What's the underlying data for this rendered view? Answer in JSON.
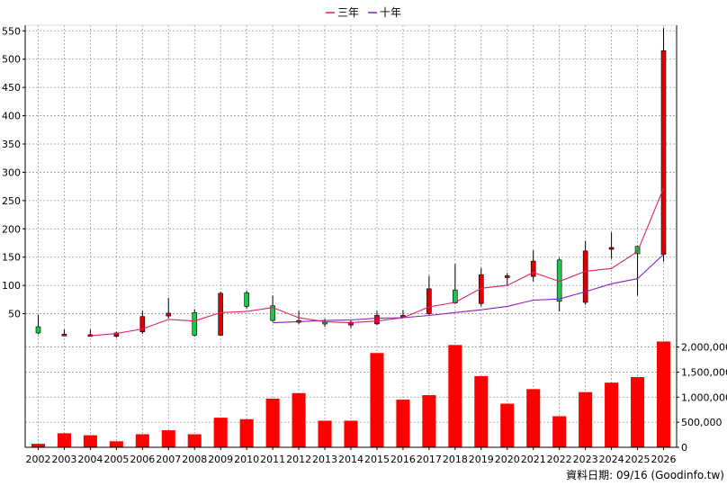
{
  "chart_data": {
    "type": "candlestick+line+bar",
    "legend": {
      "position": "top-center",
      "items": [
        {
          "name": "三年",
          "color": "#e0206b"
        },
        {
          "name": "十年",
          "color": "#8b1fc0"
        }
      ]
    },
    "colors": {
      "up": "#e00000",
      "down": "#19c84a",
      "volume": "#ff0000",
      "grid": "#9a9a9a",
      "axis": "#000000"
    },
    "grid": true,
    "years": [
      "2002",
      "2003",
      "2004",
      "2005",
      "2006",
      "2007",
      "2008",
      "2009",
      "2010",
      "2011",
      "2012",
      "2013",
      "2014",
      "2015",
      "2016",
      "2017",
      "2018",
      "2019",
      "2020",
      "2021",
      "2022",
      "2023",
      "2024",
      "2025",
      "2026"
    ],
    "price": {
      "ylim": [
        0,
        560
      ],
      "ticks": [
        50,
        100,
        150,
        200,
        250,
        300,
        350,
        400,
        450,
        500,
        550
      ],
      "candles": [
        {
          "o": 27,
          "h": 48,
          "l": 14,
          "c": 16
        },
        {
          "o": 14,
          "h": 22,
          "l": 11,
          "c": 14
        },
        {
          "o": 11,
          "h": 22,
          "l": 10,
          "c": 13
        },
        {
          "o": 10,
          "h": 18,
          "l": 8,
          "c": 16
        },
        {
          "o": 18,
          "h": 55,
          "l": 14,
          "c": 45
        },
        {
          "o": 46,
          "h": 78,
          "l": 42,
          "c": 51
        },
        {
          "o": 52,
          "h": 58,
          "l": 10,
          "c": 12
        },
        {
          "o": 12,
          "h": 89,
          "l": 11,
          "c": 86
        },
        {
          "o": 87,
          "h": 91,
          "l": 59,
          "c": 63
        },
        {
          "o": 64,
          "h": 82,
          "l": 36,
          "c": 38
        },
        {
          "o": 36,
          "h": 55,
          "l": 32,
          "c": 38
        },
        {
          "o": 35,
          "h": 41,
          "l": 27,
          "c": 33
        },
        {
          "o": 30,
          "h": 38,
          "l": 25,
          "c": 35
        },
        {
          "o": 32,
          "h": 55,
          "l": 30,
          "c": 47
        },
        {
          "o": 46,
          "h": 56,
          "l": 42,
          "c": 47
        },
        {
          "o": 50,
          "h": 117,
          "l": 48,
          "c": 94
        },
        {
          "o": 92,
          "h": 138,
          "l": 67,
          "c": 69
        },
        {
          "o": 68,
          "h": 131,
          "l": 63,
          "c": 119
        },
        {
          "o": 114,
          "h": 122,
          "l": 99,
          "c": 117
        },
        {
          "o": 116,
          "h": 162,
          "l": 107,
          "c": 143
        },
        {
          "o": 145,
          "h": 149,
          "l": 54,
          "c": 72
        },
        {
          "o": 70,
          "h": 179,
          "l": 66,
          "c": 161
        },
        {
          "o": 164,
          "h": 194,
          "l": 147,
          "c": 167
        },
        {
          "o": 169,
          "h": 170,
          "l": 82,
          "c": 156
        },
        {
          "o": 155,
          "h": 555,
          "l": 142,
          "c": 515
        }
      ],
      "ma3": [
        null,
        null,
        11,
        15,
        23,
        40,
        37,
        52,
        54,
        61,
        43,
        36,
        34,
        37,
        43,
        62,
        70,
        95,
        100,
        123,
        107,
        125,
        130,
        160,
        272
      ],
      "ma10": [
        null,
        null,
        null,
        null,
        null,
        null,
        null,
        null,
        null,
        34,
        36,
        38,
        39,
        42,
        43,
        47,
        52,
        57,
        63,
        74,
        76,
        89,
        103,
        112,
        155
      ]
    },
    "volume": {
      "ylim": [
        0,
        2100000
      ],
      "ticks": [
        0,
        500000,
        1000000,
        1500000,
        2000000
      ],
      "tick_labels": [
        "0",
        "500,000",
        "1,000,000",
        "1,500,000",
        "2,000,000"
      ],
      "values": [
        70000,
        280000,
        240000,
        120000,
        260000,
        340000,
        260000,
        590000,
        560000,
        970000,
        1080000,
        530000,
        530000,
        1880000,
        950000,
        1040000,
        2040000,
        1420000,
        870000,
        1160000,
        620000,
        1100000,
        1290000,
        1400000,
        2110000
      ]
    },
    "footer": "資料日期: 09/16 (Goodinfo.tw)"
  }
}
